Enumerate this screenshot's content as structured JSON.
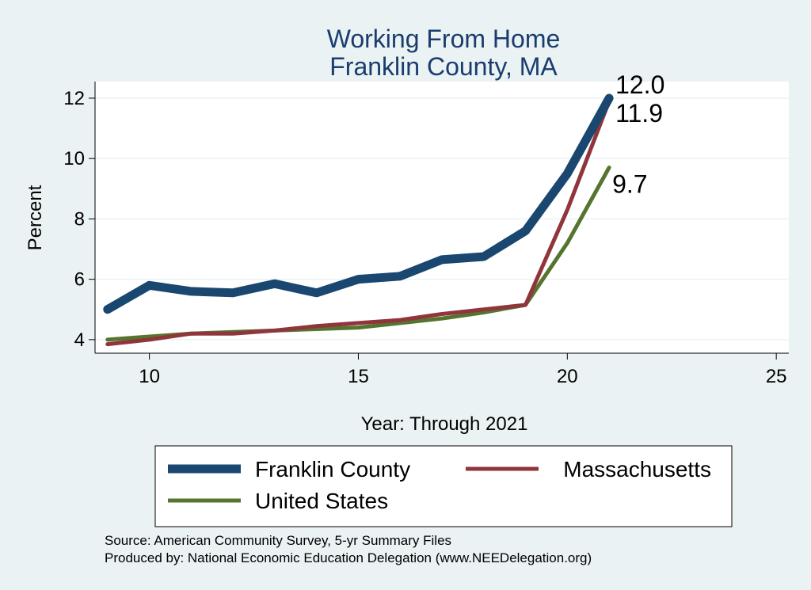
{
  "chart_data": {
    "type": "line",
    "title": "Working From Home",
    "subtitle": "Franklin County, MA",
    "xlabel": "Year: Through 2021",
    "ylabel": "Percent",
    "xlim": [
      8.7,
      25.3
    ],
    "ylim": [
      3.55,
      12.55
    ],
    "x_ticks": [
      10,
      15,
      20,
      25
    ],
    "y_ticks": [
      4,
      6,
      8,
      10,
      12
    ],
    "grid": true,
    "legend_position": "bottom",
    "x": [
      9,
      10,
      11,
      12,
      13,
      14,
      15,
      16,
      17,
      18,
      19,
      20,
      21
    ],
    "series": [
      {
        "name": "Franklin County",
        "color": "#1a476f",
        "values": [
          5.0,
          5.8,
          5.6,
          5.55,
          5.85,
          5.55,
          6.0,
          6.1,
          6.65,
          6.75,
          7.6,
          9.5,
          12.0
        ],
        "end_label": "12.0"
      },
      {
        "name": "Massachusetts",
        "color": "#90353b",
        "values": [
          3.85,
          4.0,
          4.2,
          4.2,
          4.3,
          4.45,
          4.55,
          4.65,
          4.85,
          5.0,
          5.15,
          8.3,
          11.9
        ],
        "end_label": "11.9"
      },
      {
        "name": "United States",
        "color": "#55752f",
        "values": [
          4.0,
          4.1,
          4.2,
          4.25,
          4.3,
          4.35,
          4.4,
          4.55,
          4.7,
          4.9,
          5.15,
          7.2,
          9.7
        ],
        "end_label": "9.7"
      }
    ]
  },
  "notes": [
    "Source: American Community Survey, 5-yr Summary Files",
    "Produced by: National Economic Education Delegation (www.NEEDelegation.org)"
  ]
}
